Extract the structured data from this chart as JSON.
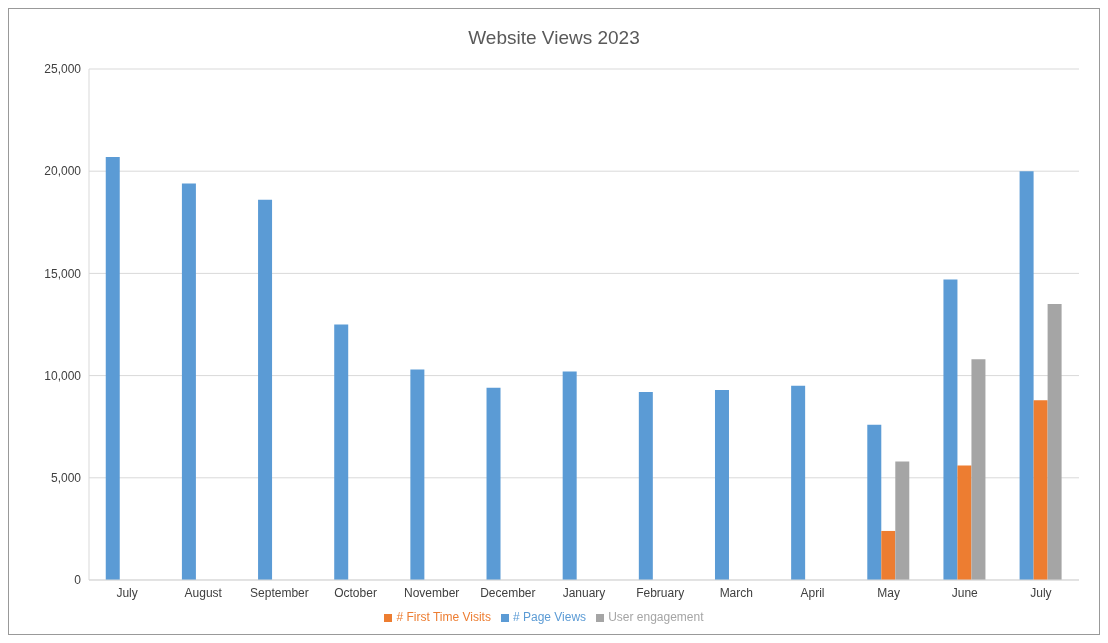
{
  "chart_data": {
    "type": "bar",
    "title": "Website Views 2023",
    "categories": [
      "July",
      "August",
      "September",
      "October",
      "November",
      "December",
      "January",
      "February",
      "March",
      "April",
      "May",
      "June",
      "July"
    ],
    "series": [
      {
        "name": "# Page Views",
        "color": "#5b9bd5",
        "values": [
          20700,
          19400,
          18600,
          12500,
          10300,
          9400,
          10200,
          9200,
          9300,
          9500,
          7600,
          14700,
          20000
        ]
      },
      {
        "name": "# First Time Visits",
        "color": "#ed7d31",
        "values": [
          null,
          null,
          null,
          null,
          null,
          null,
          null,
          null,
          null,
          null,
          2400,
          5600,
          8800
        ]
      },
      {
        "name": "User engagement",
        "color": "#a5a5a5",
        "values": [
          null,
          null,
          null,
          null,
          null,
          null,
          null,
          null,
          null,
          null,
          5800,
          10800,
          13500
        ]
      }
    ],
    "ylim": [
      0,
      25000
    ],
    "yticks": [
      {
        "value": 0,
        "label": "0"
      },
      {
        "value": 5000,
        "label": "5,000"
      },
      {
        "value": 10000,
        "label": "10,000"
      },
      {
        "value": 15000,
        "label": "15,000"
      },
      {
        "value": 20000,
        "label": "20,000"
      },
      {
        "value": 25000,
        "label": "25,000"
      }
    ],
    "grid": "y",
    "legend": "bottom"
  }
}
